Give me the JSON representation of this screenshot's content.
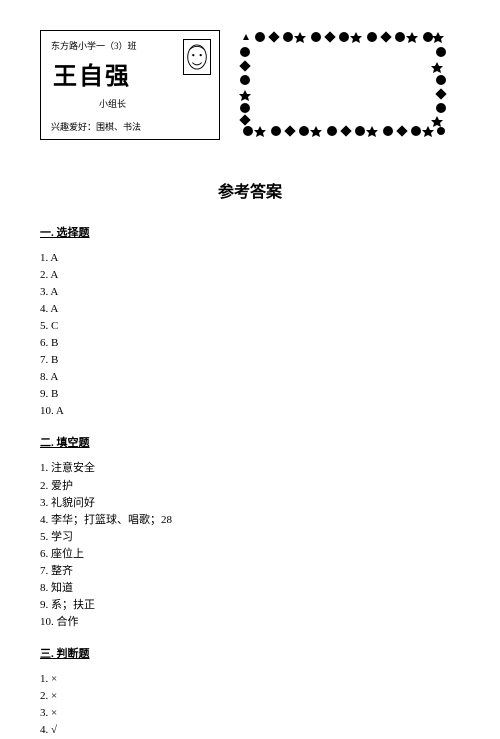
{
  "card": {
    "header": "东方路小学一（3）班",
    "name": "王自强",
    "role": "小组长",
    "hobby_label": "兴趣爱好：围棋、书法"
  },
  "title": "参考答案",
  "sections": {
    "s1": {
      "title": "一. 选择题",
      "items": [
        "1. A",
        "2. A",
        "3. A",
        "4. A",
        "5. C",
        "6. B",
        "7. B",
        "8. A",
        "9. B",
        "10. A"
      ]
    },
    "s2": {
      "title": "二. 填空题",
      "items": [
        "1. 注意安全",
        "2. 爱护",
        "3. 礼貌问好",
        "4. 李华；打篮球、唱歌；28",
        "5. 学习",
        "6. 座位上",
        "7. 整齐",
        "8. 知道",
        "9. 系；扶正",
        "10. 合作"
      ]
    },
    "s3": {
      "title": "三. 判断题",
      "items": [
        "1. ×",
        "2. ×",
        "3. ×",
        "4. √"
      ]
    }
  },
  "colors": {
    "text": "#000000",
    "background": "#ffffff",
    "border": "#000000"
  }
}
